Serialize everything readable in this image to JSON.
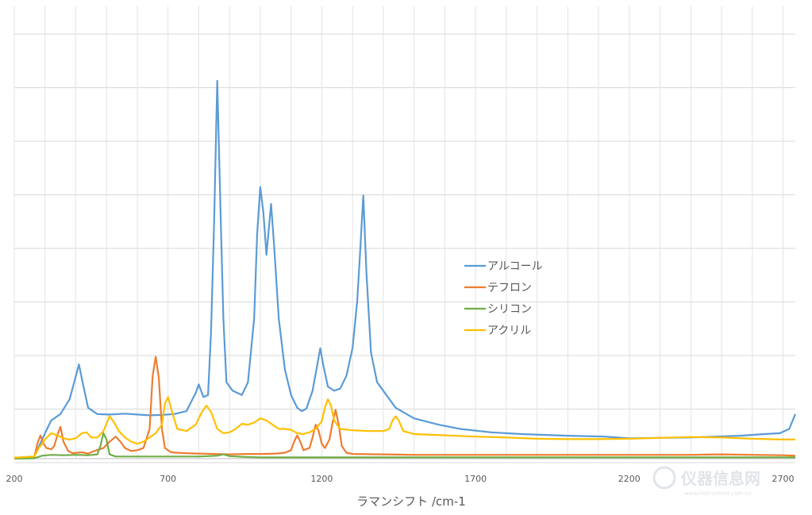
{
  "chart_data": {
    "type": "line",
    "xlabel": "ラマンシフト /cm-1",
    "ylabel": "",
    "xlim": [
      200,
      2740
    ],
    "ylim": [
      0,
      1000
    ],
    "x_ticks": [
      200,
      700,
      1200,
      1700,
      2200,
      2700
    ],
    "grid": "vertical and horizontal",
    "legend_position": "right-center",
    "series": [
      {
        "name": "アルコール",
        "color": "#5b9bd5",
        "points": [
          [
            200,
            2
          ],
          [
            265,
            5
          ],
          [
            300,
            60
          ],
          [
            320,
            90
          ],
          [
            350,
            105
          ],
          [
            380,
            140
          ],
          [
            395,
            180
          ],
          [
            410,
            222
          ],
          [
            425,
            170
          ],
          [
            440,
            120
          ],
          [
            470,
            105
          ],
          [
            510,
            104
          ],
          [
            560,
            106
          ],
          [
            600,
            104
          ],
          [
            640,
            102
          ],
          [
            680,
            103
          ],
          [
            720,
            105
          ],
          [
            760,
            112
          ],
          [
            790,
            155
          ],
          [
            800,
            175
          ],
          [
            815,
            145
          ],
          [
            830,
            150
          ],
          [
            840,
            300
          ],
          [
            850,
            560
          ],
          [
            860,
            890
          ],
          [
            870,
            600
          ],
          [
            880,
            330
          ],
          [
            890,
            180
          ],
          [
            910,
            160
          ],
          [
            940,
            150
          ],
          [
            960,
            180
          ],
          [
            980,
            330
          ],
          [
            990,
            530
          ],
          [
            1000,
            640
          ],
          [
            1010,
            580
          ],
          [
            1020,
            480
          ],
          [
            1035,
            600
          ],
          [
            1045,
            500
          ],
          [
            1060,
            330
          ],
          [
            1080,
            210
          ],
          [
            1100,
            150
          ],
          [
            1120,
            120
          ],
          [
            1135,
            112
          ],
          [
            1150,
            118
          ],
          [
            1170,
            160
          ],
          [
            1185,
            220
          ],
          [
            1195,
            260
          ],
          [
            1205,
            220
          ],
          [
            1220,
            170
          ],
          [
            1240,
            160
          ],
          [
            1260,
            165
          ],
          [
            1280,
            195
          ],
          [
            1300,
            260
          ],
          [
            1315,
            370
          ],
          [
            1325,
            490
          ],
          [
            1335,
            620
          ],
          [
            1345,
            440
          ],
          [
            1360,
            250
          ],
          [
            1380,
            180
          ],
          [
            1410,
            150
          ],
          [
            1440,
            120
          ],
          [
            1500,
            95
          ],
          [
            1580,
            80
          ],
          [
            1650,
            70
          ],
          [
            1750,
            62
          ],
          [
            1850,
            58
          ],
          [
            2000,
            54
          ],
          [
            2120,
            52
          ],
          [
            2200,
            48
          ],
          [
            2300,
            49
          ],
          [
            2400,
            50
          ],
          [
            2480,
            52
          ],
          [
            2560,
            54
          ],
          [
            2640,
            58
          ],
          [
            2690,
            60
          ],
          [
            2720,
            70
          ],
          [
            2740,
            105
          ]
        ]
      },
      {
        "name": "テフロン",
        "color": "#ed7d31",
        "points": [
          [
            200,
            2
          ],
          [
            265,
            4
          ],
          [
            275,
            35
          ],
          [
            285,
            55
          ],
          [
            295,
            35
          ],
          [
            305,
            25
          ],
          [
            320,
            22
          ],
          [
            330,
            30
          ],
          [
            340,
            55
          ],
          [
            350,
            75
          ],
          [
            360,
            40
          ],
          [
            375,
            18
          ],
          [
            390,
            13
          ],
          [
            420,
            15
          ],
          [
            440,
            12
          ],
          [
            460,
            18
          ],
          [
            490,
            25
          ],
          [
            510,
            40
          ],
          [
            530,
            52
          ],
          [
            545,
            40
          ],
          [
            560,
            25
          ],
          [
            580,
            18
          ],
          [
            600,
            20
          ],
          [
            620,
            25
          ],
          [
            640,
            70
          ],
          [
            650,
            195
          ],
          [
            660,
            240
          ],
          [
            670,
            190
          ],
          [
            680,
            70
          ],
          [
            690,
            25
          ],
          [
            710,
            15
          ],
          [
            750,
            13
          ],
          [
            800,
            12
          ],
          [
            850,
            11
          ],
          [
            900,
            10
          ],
          [
            950,
            11
          ],
          [
            1000,
            11
          ],
          [
            1050,
            12
          ],
          [
            1080,
            14
          ],
          [
            1100,
            20
          ],
          [
            1110,
            40
          ],
          [
            1120,
            55
          ],
          [
            1130,
            40
          ],
          [
            1140,
            20
          ],
          [
            1160,
            25
          ],
          [
            1170,
            50
          ],
          [
            1180,
            80
          ],
          [
            1190,
            65
          ],
          [
            1200,
            35
          ],
          [
            1210,
            25
          ],
          [
            1225,
            45
          ],
          [
            1235,
            85
          ],
          [
            1245,
            115
          ],
          [
            1255,
            80
          ],
          [
            1265,
            30
          ],
          [
            1280,
            14
          ],
          [
            1300,
            11
          ],
          [
            1400,
            10
          ],
          [
            1500,
            9
          ],
          [
            1600,
            9
          ],
          [
            1700,
            9
          ],
          [
            1800,
            9
          ],
          [
            1900,
            9
          ],
          [
            2000,
            9
          ],
          [
            2100,
            9
          ],
          [
            2200,
            9
          ],
          [
            2300,
            9
          ],
          [
            2400,
            9
          ],
          [
            2500,
            10
          ],
          [
            2600,
            9
          ],
          [
            2700,
            8
          ],
          [
            2740,
            7
          ]
        ]
      },
      {
        "name": "シリコン",
        "color": "#70ad47",
        "points": [
          [
            200,
            0
          ],
          [
            265,
            1
          ],
          [
            290,
            7
          ],
          [
            320,
            9
          ],
          [
            360,
            8
          ],
          [
            400,
            9
          ],
          [
            440,
            8
          ],
          [
            470,
            10
          ],
          [
            480,
            30
          ],
          [
            490,
            60
          ],
          [
            500,
            45
          ],
          [
            510,
            10
          ],
          [
            530,
            5
          ],
          [
            560,
            5
          ],
          [
            600,
            5
          ],
          [
            650,
            5
          ],
          [
            700,
            5
          ],
          [
            750,
            5
          ],
          [
            800,
            5
          ],
          [
            830,
            6
          ],
          [
            860,
            7
          ],
          [
            880,
            10
          ],
          [
            900,
            6
          ],
          [
            950,
            4
          ],
          [
            1000,
            3
          ],
          [
            1100,
            3
          ],
          [
            1200,
            3
          ],
          [
            1300,
            3
          ],
          [
            1400,
            3
          ],
          [
            1500,
            3
          ],
          [
            1600,
            3
          ],
          [
            1700,
            3
          ],
          [
            1800,
            3
          ],
          [
            1900,
            3
          ],
          [
            2000,
            3
          ],
          [
            2100,
            3
          ],
          [
            2200,
            3
          ],
          [
            2300,
            3
          ],
          [
            2400,
            3
          ],
          [
            2500,
            3
          ],
          [
            2600,
            3
          ],
          [
            2700,
            3
          ],
          [
            2740,
            3
          ]
        ]
      },
      {
        "name": "アクリル",
        "color": "#ffc000",
        "points": [
          [
            200,
            2
          ],
          [
            265,
            5
          ],
          [
            280,
            25
          ],
          [
            300,
            45
          ],
          [
            320,
            60
          ],
          [
            340,
            55
          ],
          [
            360,
            48
          ],
          [
            380,
            45
          ],
          [
            400,
            48
          ],
          [
            420,
            60
          ],
          [
            435,
            62
          ],
          [
            450,
            50
          ],
          [
            470,
            50
          ],
          [
            490,
            65
          ],
          [
            510,
            100
          ],
          [
            525,
            85
          ],
          [
            540,
            65
          ],
          [
            560,
            50
          ],
          [
            580,
            40
          ],
          [
            600,
            35
          ],
          [
            620,
            40
          ],
          [
            640,
            50
          ],
          [
            660,
            60
          ],
          [
            680,
            80
          ],
          [
            690,
            130
          ],
          [
            700,
            145
          ],
          [
            715,
            105
          ],
          [
            730,
            70
          ],
          [
            760,
            65
          ],
          [
            790,
            80
          ],
          [
            810,
            110
          ],
          [
            825,
            125
          ],
          [
            840,
            110
          ],
          [
            860,
            70
          ],
          [
            880,
            60
          ],
          [
            900,
            62
          ],
          [
            920,
            70
          ],
          [
            940,
            82
          ],
          [
            960,
            80
          ],
          [
            980,
            85
          ],
          [
            1000,
            95
          ],
          [
            1020,
            90
          ],
          [
            1040,
            80
          ],
          [
            1060,
            70
          ],
          [
            1080,
            70
          ],
          [
            1100,
            68
          ],
          [
            1120,
            60
          ],
          [
            1140,
            58
          ],
          [
            1160,
            62
          ],
          [
            1180,
            70
          ],
          [
            1200,
            88
          ],
          [
            1210,
            120
          ],
          [
            1220,
            140
          ],
          [
            1230,
            125
          ],
          [
            1240,
            90
          ],
          [
            1260,
            70
          ],
          [
            1300,
            67
          ],
          [
            1350,
            65
          ],
          [
            1400,
            65
          ],
          [
            1420,
            70
          ],
          [
            1430,
            90
          ],
          [
            1440,
            100
          ],
          [
            1450,
            90
          ],
          [
            1465,
            65
          ],
          [
            1500,
            58
          ],
          [
            1600,
            55
          ],
          [
            1700,
            52
          ],
          [
            1800,
            50
          ],
          [
            1900,
            47
          ],
          [
            2000,
            46
          ],
          [
            2100,
            46
          ],
          [
            2200,
            47
          ],
          [
            2300,
            49
          ],
          [
            2400,
            51
          ],
          [
            2500,
            50
          ],
          [
            2600,
            47
          ],
          [
            2700,
            45
          ],
          [
            2740,
            45
          ]
        ]
      }
    ]
  },
  "watermark": {
    "text": "仪器信息网",
    "subtext": "www.instrument.com.cn"
  }
}
